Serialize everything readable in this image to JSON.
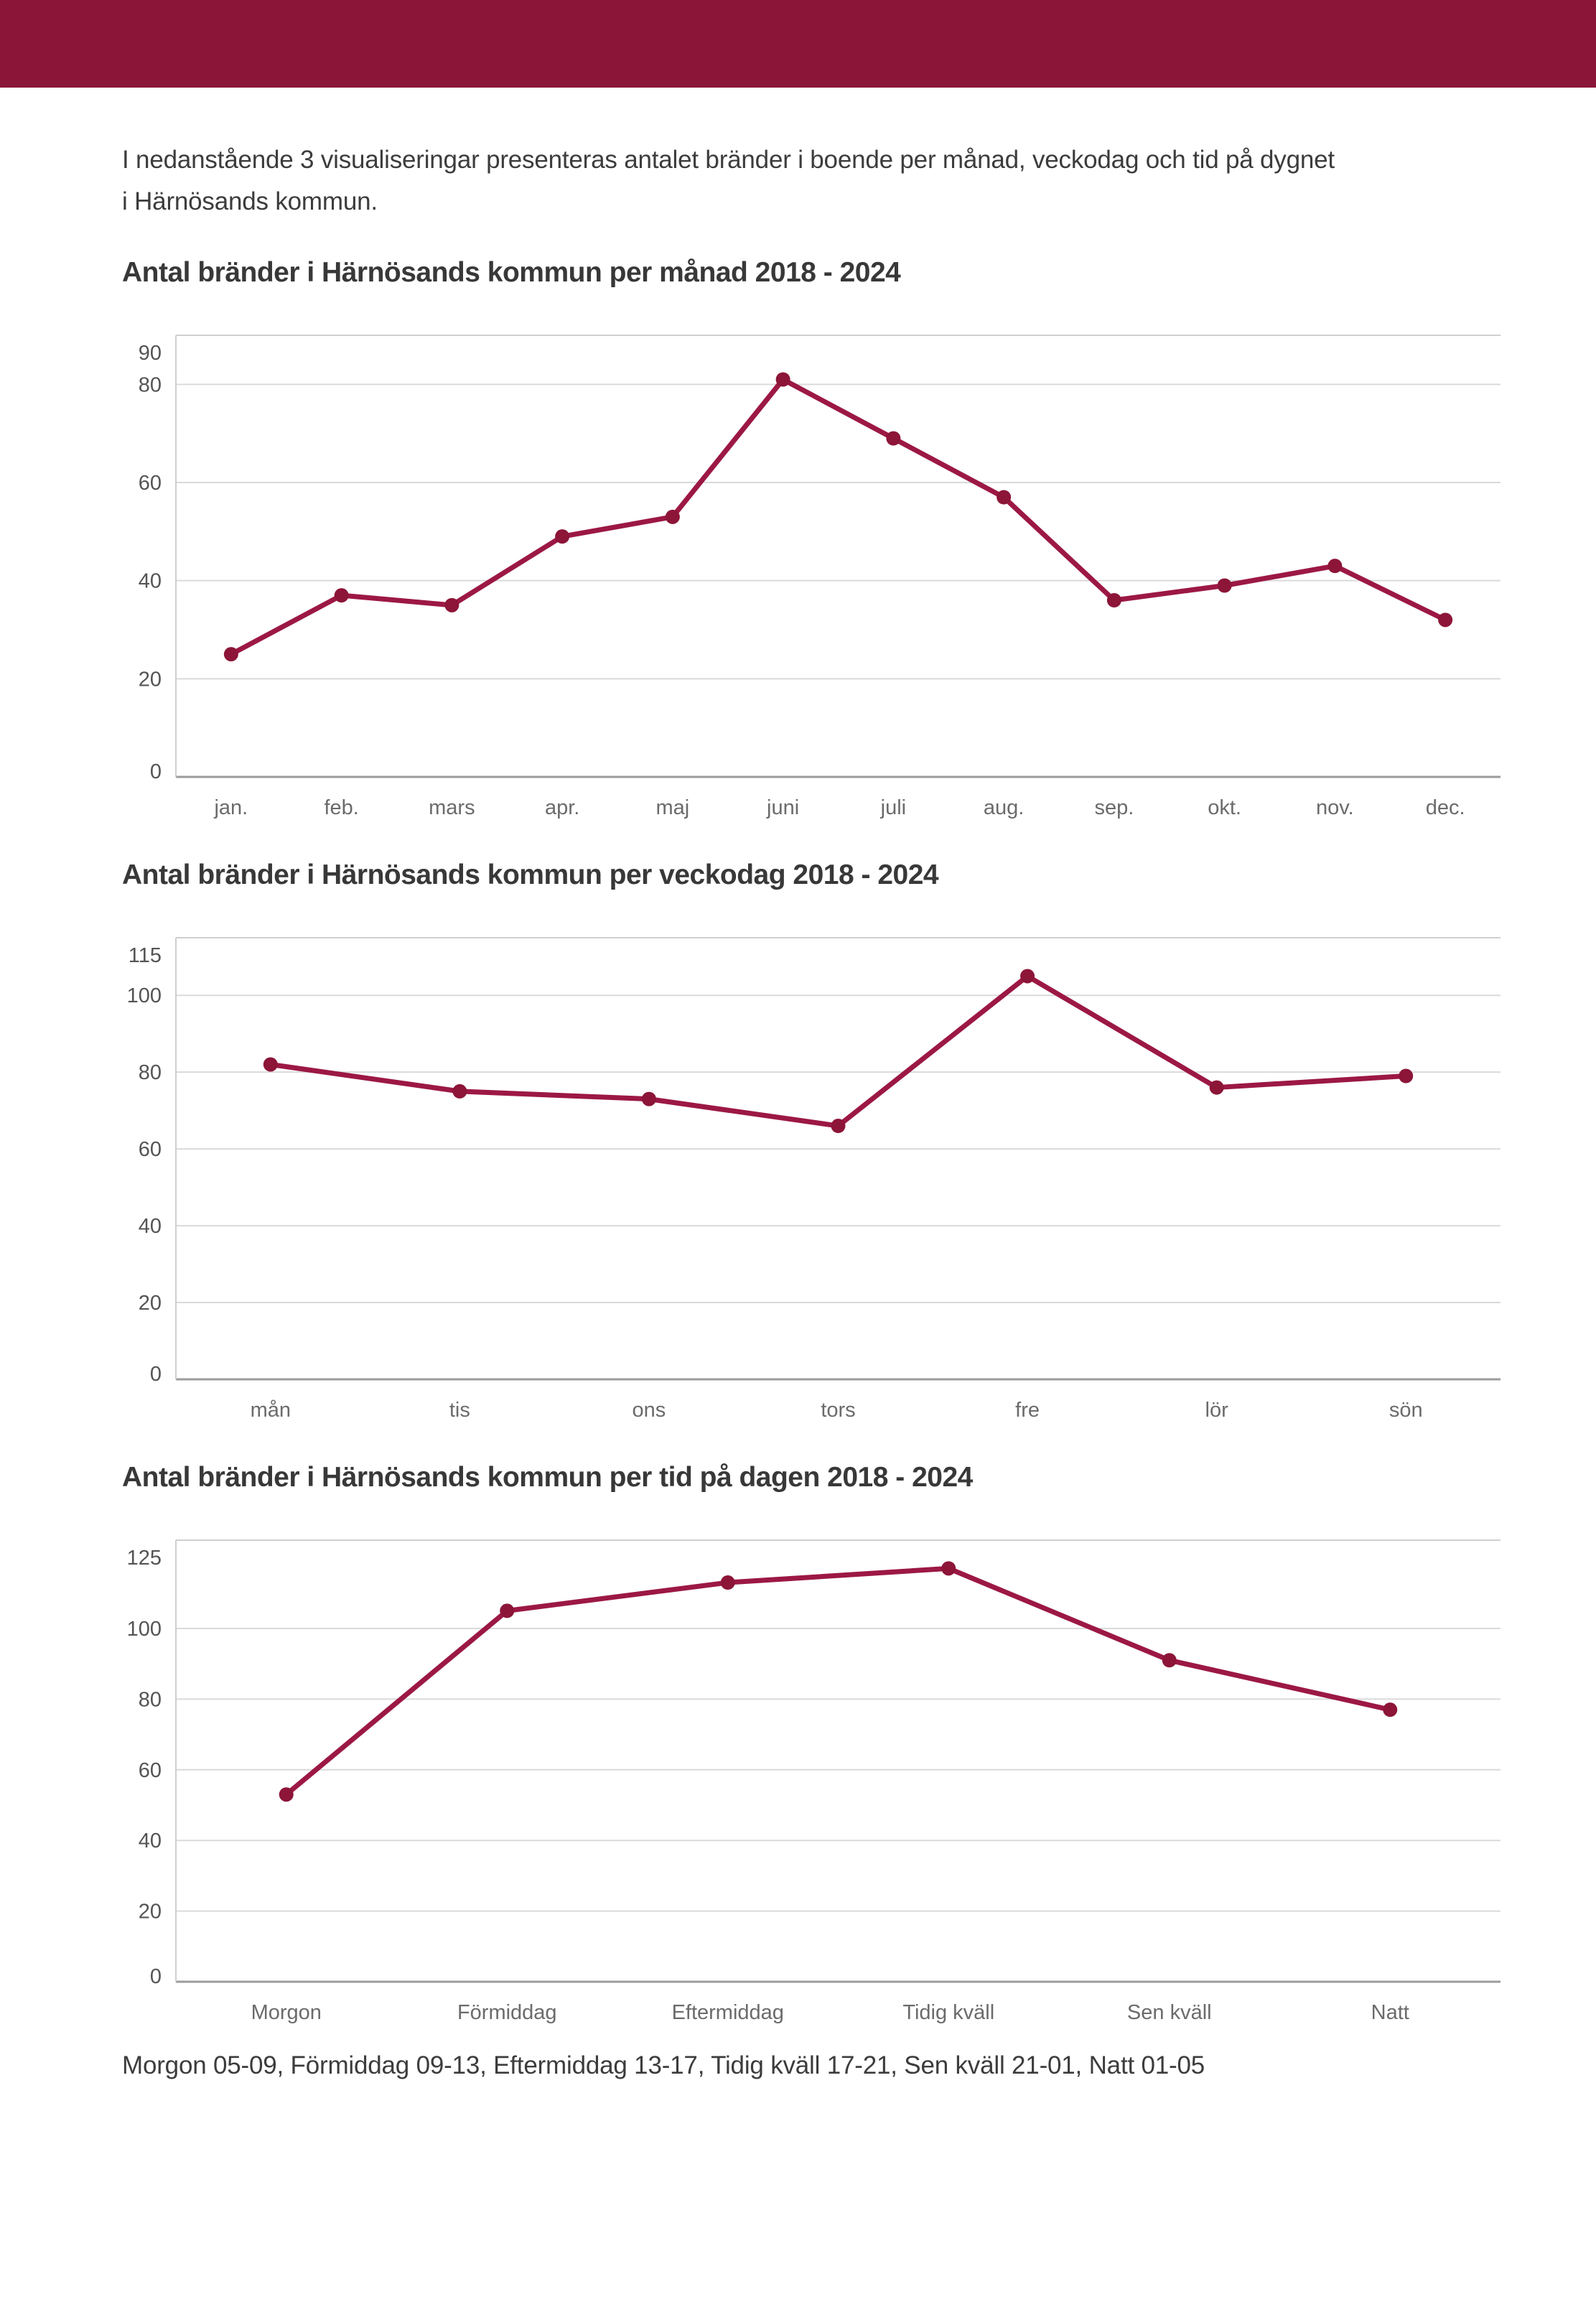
{
  "page": {
    "intro_line1": "I nedanstående 3 visualiseringar presenteras antalet bränder i boende per månad, veckodag och tid på dygnet",
    "intro_line2": "i Härnösands kommun.",
    "footnote": "Morgon 05-09, Förmiddag 09-13, Eftermiddag 13-17, Tidig kväll 17-21, Sen kväll 21-01, Natt 01-05"
  },
  "colors": {
    "header_bar": "#8B1538",
    "line": "#9C1844",
    "marker": "#8C1538",
    "grid": "#DADADA",
    "zero_axis": "#9B9B9B",
    "plot_border": "#CFCFCF",
    "y_label": "#545454",
    "x_label": "#6B6B6B"
  },
  "chart_data": [
    {
      "type": "line",
      "title": "Antal bränder i Härnösands kommun per månad 2018 - 2024",
      "categories": [
        "jan.",
        "feb.",
        "mars",
        "apr.",
        "maj",
        "juni",
        "juli",
        "aug.",
        "sep.",
        "okt.",
        "nov.",
        "dec."
      ],
      "values": [
        25,
        37,
        35,
        49,
        53,
        81,
        69,
        57,
        36,
        39,
        43,
        32
      ],
      "xlabel": "",
      "ylabel": "",
      "ylim": [
        0,
        90
      ],
      "yticks": [
        0,
        20,
        40,
        60,
        80,
        90
      ],
      "grid": true,
      "legend": "none"
    },
    {
      "type": "line",
      "title": "Antal bränder i Härnösands kommun per veckodag 2018 - 2024",
      "categories": [
        "mån",
        "tis",
        "ons",
        "tors",
        "fre",
        "lör",
        "sön"
      ],
      "values": [
        82,
        75,
        73,
        66,
        105,
        76,
        79
      ],
      "xlabel": "",
      "ylabel": "",
      "ylim": [
        0,
        115
      ],
      "yticks": [
        0,
        20,
        40,
        60,
        80,
        100,
        115
      ],
      "grid": true,
      "legend": "none"
    },
    {
      "type": "line",
      "title": "Antal bränder i Härnösands kommun per tid på dagen 2018 - 2024",
      "categories": [
        "Morgon",
        "Förmiddag",
        "Eftermiddag",
        "Tidig kväll",
        "Sen kväll",
        "Natt"
      ],
      "values": [
        53,
        105,
        113,
        117,
        91,
        77
      ],
      "xlabel": "",
      "ylabel": "",
      "ylim": [
        0,
        125
      ],
      "yticks": [
        0,
        20,
        40,
        60,
        80,
        100,
        125
      ],
      "grid": true,
      "legend": "none"
    }
  ]
}
